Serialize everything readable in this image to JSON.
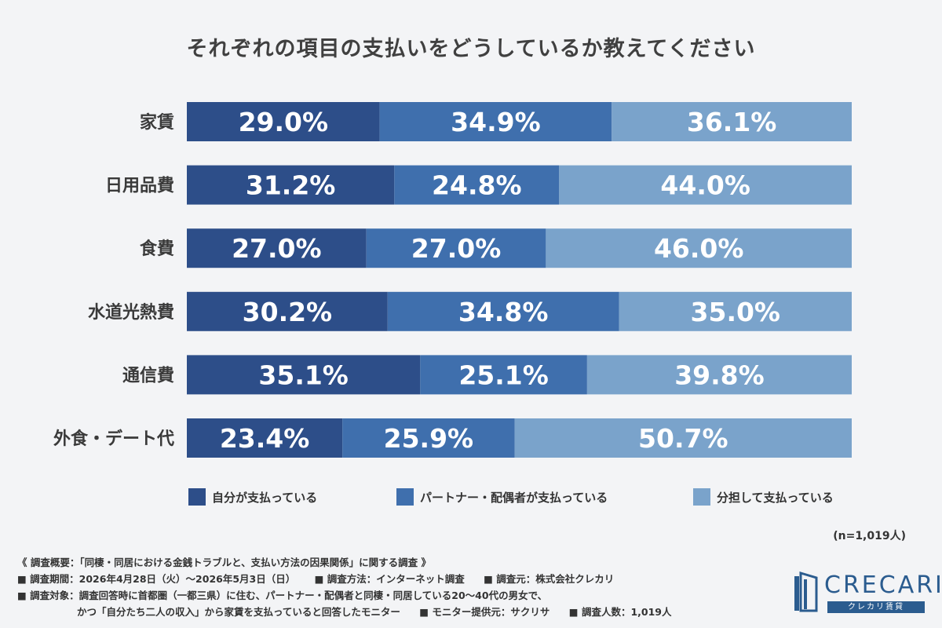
{
  "chart_data": {
    "type": "bar",
    "orientation": "horizontal",
    "stacked": true,
    "title": "それぞれの項目の支払いをどうしているか教えてください",
    "categories": [
      "家賃",
      "日用品費",
      "食費",
      "水道光熱費",
      "通信費",
      "外食・デート代"
    ],
    "series": [
      {
        "name": "自分が支払っている",
        "color": "#2d4e89",
        "values": [
          29.0,
          31.2,
          27.0,
          30.2,
          35.1,
          23.4
        ]
      },
      {
        "name": "パートナー・配偶者が支払っている",
        "color": "#3f6fad",
        "values": [
          34.9,
          24.8,
          27.0,
          34.8,
          25.1,
          25.9
        ]
      },
      {
        "name": "分担して支払っている",
        "color": "#7aa3cb",
        "values": [
          36.1,
          44.0,
          46.0,
          35.0,
          39.8,
          50.7
        ]
      }
    ],
    "value_suffix": "%",
    "xlim": [
      0,
      100
    ],
    "grid": false,
    "legend_position": "bottom"
  },
  "sample_size": "(n=1,019人)",
  "footnotes": {
    "line1": "《 調査概要：「同棲・同居における金銭トラブルと、支払い方法の因果関係」に関する調査 》",
    "line2": [
      "■ 調査期間：2026年4月28日（火）～2026年5月3日（日）",
      "■ 調査方法：インターネット調査",
      "■ 調査元：株式会社クレカリ"
    ],
    "line3": "■ 調査対象：調査回答時に首都圏（一都三県）に住む、パートナー・配偶者と同棲・同居している20～40代の男女で、",
    "line4": [
      "かつ「自分たち二人の収入」から家賃を支払っていると回答したモニター",
      "■ モニター提供元：サクリサ",
      "■ 調査人数：1,019人"
    ]
  },
  "logo": {
    "text": "CRECARI",
    "subtext": "クレカリ賃貸",
    "color": "#2b5c8f"
  }
}
